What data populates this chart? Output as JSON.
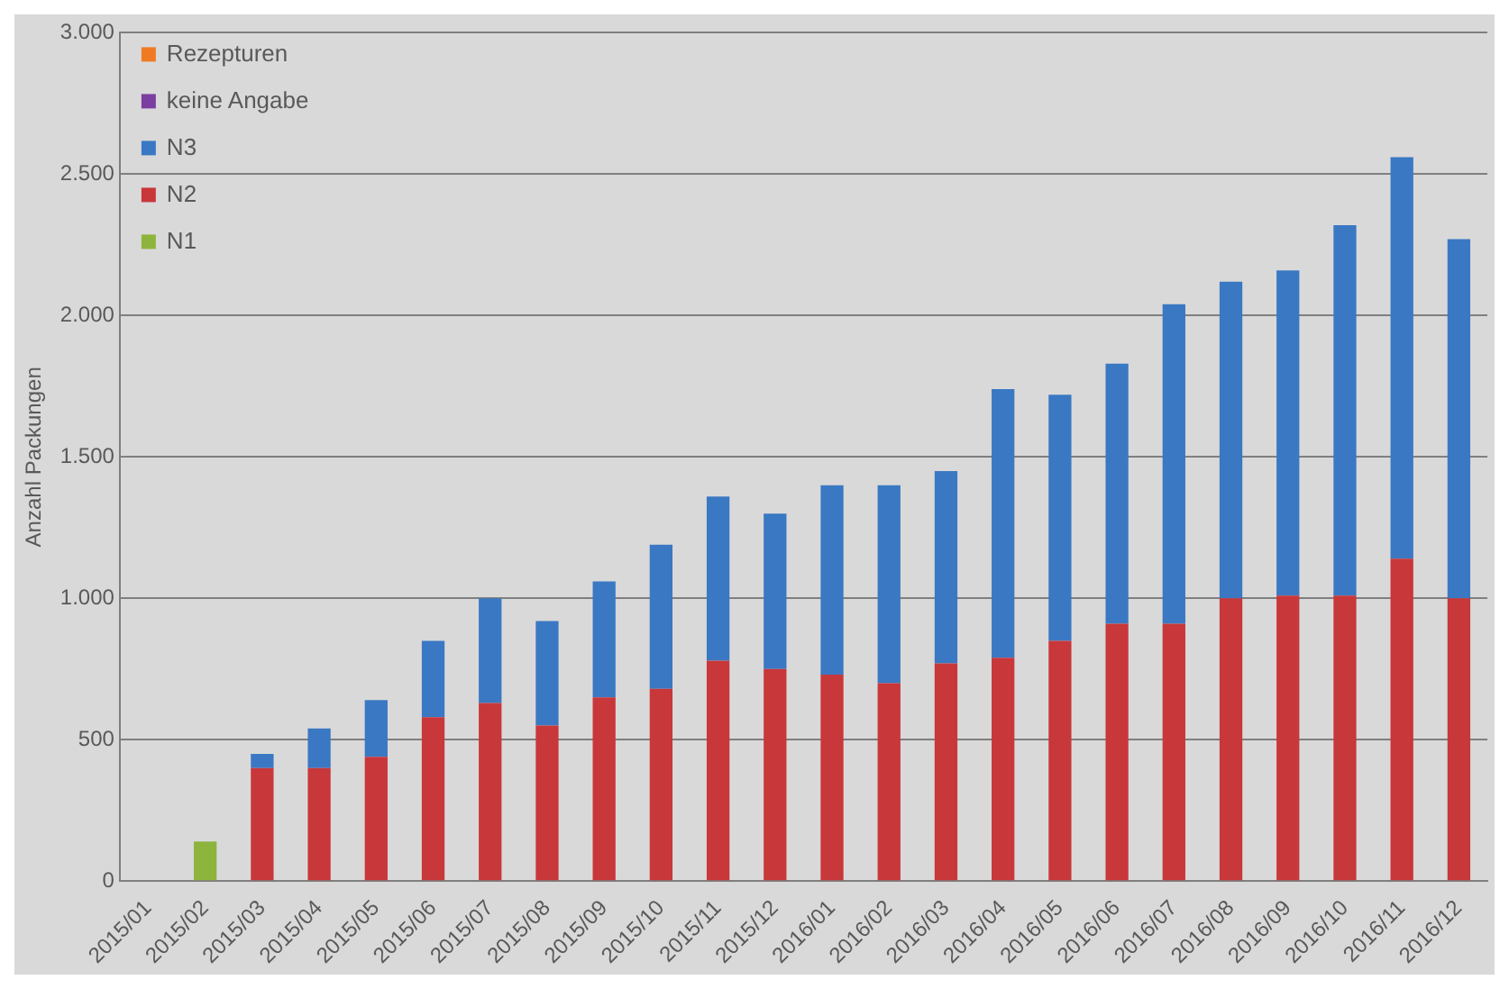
{
  "chart_data": {
    "type": "bar",
    "stacked": true,
    "ylabel": "Anzahl Packungen",
    "categories": [
      "2015/01",
      "2015/02",
      "2015/03",
      "2015/04",
      "2015/05",
      "2015/06",
      "2015/07",
      "2015/08",
      "2015/09",
      "2015/10",
      "2015/11",
      "2015/12",
      "2016/01",
      "2016/02",
      "2016/03",
      "2016/04",
      "2016/05",
      "2016/06",
      "2016/07",
      "2016/08",
      "2016/09",
      "2016/10",
      "2016/11",
      "2016/12"
    ],
    "series": [
      {
        "name": "N1",
        "color": "#8db43c",
        "values": [
          null,
          140,
          null,
          null,
          null,
          null,
          null,
          null,
          null,
          null,
          null,
          null,
          null,
          null,
          null,
          null,
          null,
          null,
          null,
          null,
          null,
          null,
          null,
          null
        ]
      },
      {
        "name": "N2",
        "color": "#c8373a",
        "values": [
          null,
          null,
          400,
          400,
          440,
          580,
          630,
          550,
          650,
          680,
          780,
          750,
          730,
          700,
          770,
          790,
          850,
          910,
          910,
          1000,
          1010,
          1010,
          1140,
          1000
        ]
      },
      {
        "name": "N3",
        "color": "#3a78c3",
        "values": [
          null,
          null,
          50,
          140,
          200,
          270,
          370,
          370,
          410,
          510,
          580,
          550,
          670,
          700,
          680,
          950,
          870,
          920,
          1130,
          1120,
          1150,
          1310,
          1420,
          1270
        ]
      },
      {
        "name": "keine Angabe",
        "color": "#7a3fa0",
        "values": [
          null,
          null,
          null,
          null,
          null,
          null,
          null,
          null,
          null,
          null,
          null,
          null,
          null,
          null,
          null,
          null,
          null,
          null,
          null,
          null,
          null,
          null,
          null,
          null
        ]
      },
      {
        "name": "Rezepturen",
        "color": "#ef7a22",
        "values": [
          null,
          null,
          null,
          null,
          null,
          null,
          null,
          null,
          null,
          null,
          null,
          null,
          null,
          null,
          null,
          null,
          null,
          null,
          null,
          null,
          null,
          null,
          null,
          null
        ]
      }
    ],
    "ylim": [
      0,
      3000
    ],
    "yticks": [
      0,
      500,
      {
        "value": 1000,
        "label": "1.000"
      },
      {
        "value": 1500,
        "label": "1.500"
      },
      {
        "value": 2000,
        "label": "2.000"
      },
      {
        "value": 2500,
        "label": "2.500"
      },
      {
        "value": 3000,
        "label": "3.000"
      }
    ],
    "grid": "y",
    "legend": "top left"
  }
}
